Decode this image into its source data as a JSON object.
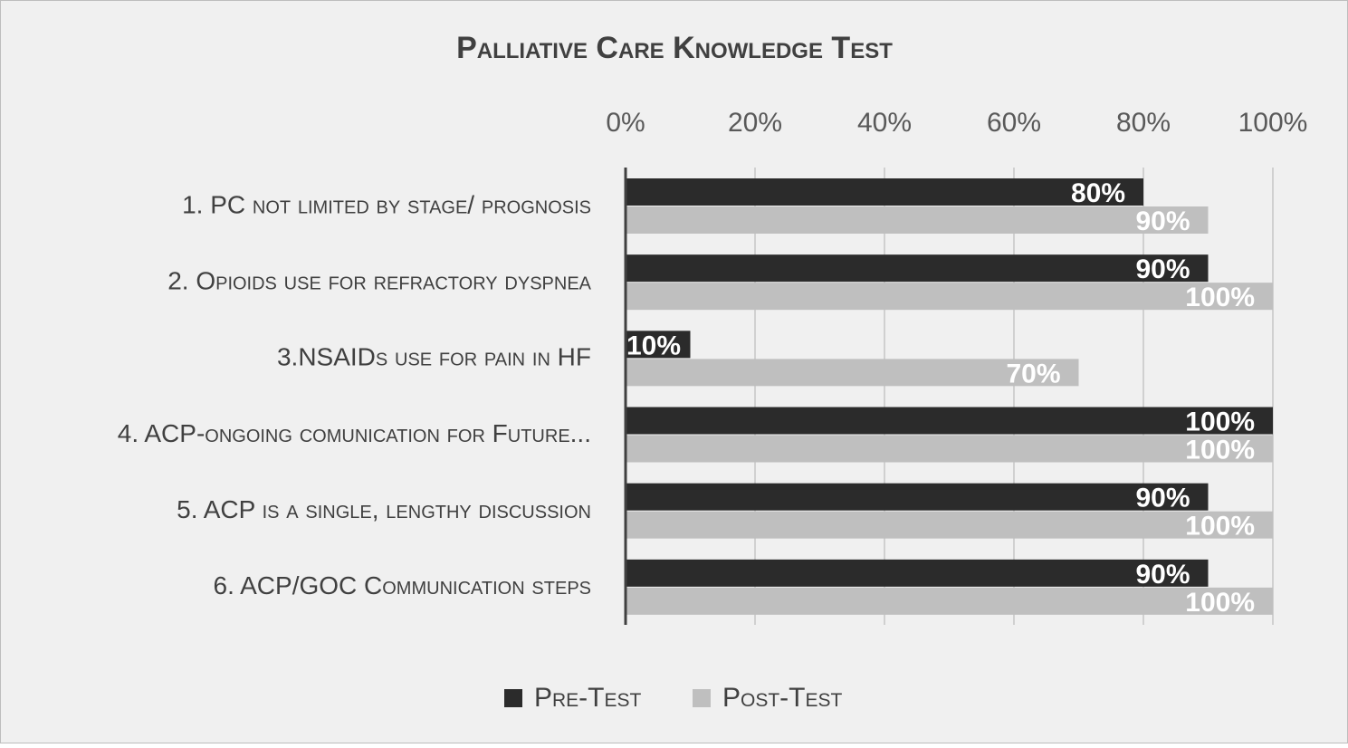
{
  "chart_data": {
    "type": "barh",
    "title": "Palliative Care Knowledge Test",
    "categories": [
      "1. PC not limited by stage/ prognosis",
      "2. Opioids use for refractory dyspnea",
      "3.NSAIDs use for pain in HF",
      "4. ACP-ongoing comunication for Future...",
      "5. ACP is a single, lengthy discussion",
      "6. ACP/GOC Communication steps"
    ],
    "series": [
      {
        "name": "Pre-Test",
        "color": "#2b2b2b",
        "values": [
          80,
          90,
          10,
          100,
          90,
          90
        ],
        "value_labels": [
          "80%",
          "90%",
          "10%",
          "100%",
          "90%",
          "90%"
        ]
      },
      {
        "name": "Post-Test",
        "color": "#bfbfbf",
        "values": [
          90,
          100,
          70,
          100,
          100,
          100
        ],
        "value_labels": [
          "90%",
          "100%",
          "70%",
          "100%",
          "100%",
          "100%"
        ]
      }
    ],
    "xlim": [
      0,
      100
    ],
    "xticks": [
      {
        "value": 0,
        "label": "0%"
      },
      {
        "value": 20,
        "label": "20%"
      },
      {
        "value": 40,
        "label": "40%"
      },
      {
        "value": 60,
        "label": "60%"
      },
      {
        "value": 80,
        "label": "80%"
      },
      {
        "value": 100,
        "label": "100%"
      }
    ],
    "grid": true,
    "legend": "bottom"
  }
}
